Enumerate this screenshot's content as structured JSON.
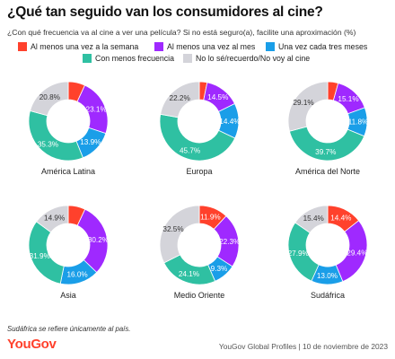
{
  "title": "¿Qué tan seguido van los consumidores al cine?",
  "subtitle": "¿Con qué frecuencia va al cine a ver una película? Si no está seguro(a), facilite una aproximación (%)",
  "footnote": "Sudáfrica se refiere únicamente al país.",
  "logo": "YouGov",
  "source": "YouGov Global Profiles | 10 de noviembre de 2023",
  "colors": {
    "semana": "#ff412c",
    "mes": "#9f29ff",
    "tres_meses": "#1a9ee8",
    "menos": "#2fc0a2",
    "no_se": "#d4d4da"
  },
  "chart_data": {
    "type": "pie",
    "variant": "donut",
    "categories": [
      "Al menos una vez a la semana",
      "Al menos una vez al mes",
      "Una vez cada tres meses",
      "Con menos frecuencia",
      "No lo sé/recuerdo/No voy al cine"
    ],
    "legend_position": "top",
    "series": [
      {
        "name": "América Latina",
        "values": [
          6.9,
          23.1,
          13.9,
          35.3,
          20.8
        ]
      },
      {
        "name": "Europa",
        "values": [
          3.2,
          14.5,
          14.4,
          45.7,
          22.2
        ]
      },
      {
        "name": "América del Norte",
        "values": [
          4.3,
          15.1,
          11.8,
          39.7,
          29.1
        ]
      },
      {
        "name": "Asia",
        "values": [
          7.0,
          30.2,
          16.0,
          31.9,
          14.9
        ]
      },
      {
        "name": "Medio Oriente",
        "values": [
          11.9,
          22.3,
          9.3,
          24.1,
          32.5
        ]
      },
      {
        "name": "Sudáfrica",
        "values": [
          14.4,
          29.4,
          13.0,
          27.9,
          15.4
        ]
      }
    ]
  }
}
